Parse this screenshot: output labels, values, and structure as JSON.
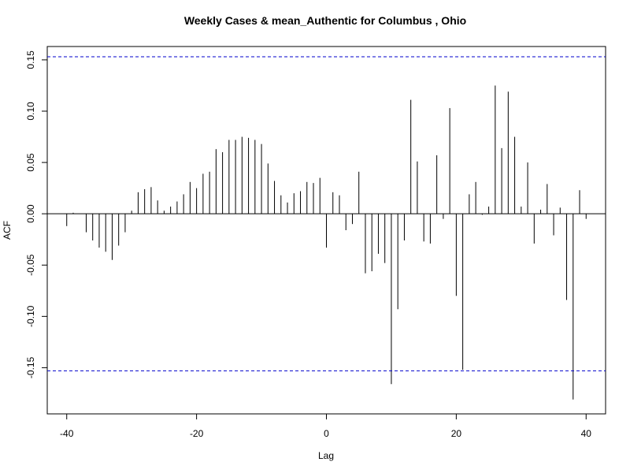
{
  "chart_data": {
    "type": "bar",
    "title": "Weekly Cases & mean_Authentic for Columbus , Ohio",
    "xlabel": "Lag",
    "ylabel": "ACF",
    "xlim": [
      -43,
      43
    ],
    "ylim": [
      -0.195,
      0.163
    ],
    "x_ticks": [
      -40,
      -20,
      0,
      20,
      40
    ],
    "y_ticks": [
      -0.15,
      -0.1,
      -0.05,
      0.0,
      0.05,
      0.1,
      0.15
    ],
    "x_tick_labels": [
      "-40",
      "-20",
      "0",
      "20",
      "40"
    ],
    "y_tick_labels": [
      "-0.15",
      "-0.10",
      "-0.05",
      "0.00",
      "0.05",
      "0.10",
      "0.15"
    ],
    "confidence_bound": 0.153,
    "confidence_color": "#0000cc",
    "bar_color": "#000000",
    "grid": false,
    "x": [
      -40,
      -39,
      -38,
      -37,
      -36,
      -35,
      -34,
      -33,
      -32,
      -31,
      -30,
      -29,
      -28,
      -27,
      -26,
      -25,
      -24,
      -23,
      -22,
      -21,
      -20,
      -19,
      -18,
      -17,
      -16,
      -15,
      -14,
      -13,
      -12,
      -11,
      -10,
      -9,
      -8,
      -7,
      -6,
      -5,
      -4,
      -3,
      -2,
      -1,
      0,
      1,
      2,
      3,
      4,
      5,
      6,
      7,
      8,
      9,
      10,
      11,
      12,
      13,
      14,
      15,
      16,
      17,
      18,
      19,
      20,
      21,
      22,
      23,
      24,
      25,
      26,
      27,
      28,
      29,
      30,
      31,
      32,
      33,
      34,
      35,
      36,
      37,
      38,
      39,
      40
    ],
    "values": [
      -0.012,
      0.001,
      0.0,
      -0.018,
      -0.026,
      -0.033,
      -0.037,
      -0.045,
      -0.031,
      -0.018,
      0.003,
      0.021,
      0.024,
      0.026,
      0.013,
      0.003,
      0.007,
      0.012,
      0.019,
      0.031,
      0.025,
      0.039,
      0.041,
      0.063,
      0.06,
      0.072,
      0.072,
      0.075,
      0.074,
      0.072,
      0.068,
      0.049,
      0.032,
      0.018,
      0.011,
      0.02,
      0.022,
      0.031,
      0.03,
      0.035,
      -0.033,
      0.021,
      0.018,
      -0.016,
      -0.01,
      0.041,
      -0.058,
      -0.056,
      -0.039,
      -0.048,
      -0.166,
      -0.093,
      -0.026,
      0.111,
      0.051,
      -0.027,
      -0.029,
      0.057,
      -0.005,
      0.103,
      -0.08,
      -0.152,
      0.019,
      0.031,
      -0.001,
      0.007,
      0.125,
      0.064,
      0.119,
      0.075,
      0.007,
      0.05,
      -0.029,
      0.004,
      0.029,
      -0.021,
      0.006,
      -0.084,
      -0.181,
      0.023,
      -0.005
    ]
  }
}
